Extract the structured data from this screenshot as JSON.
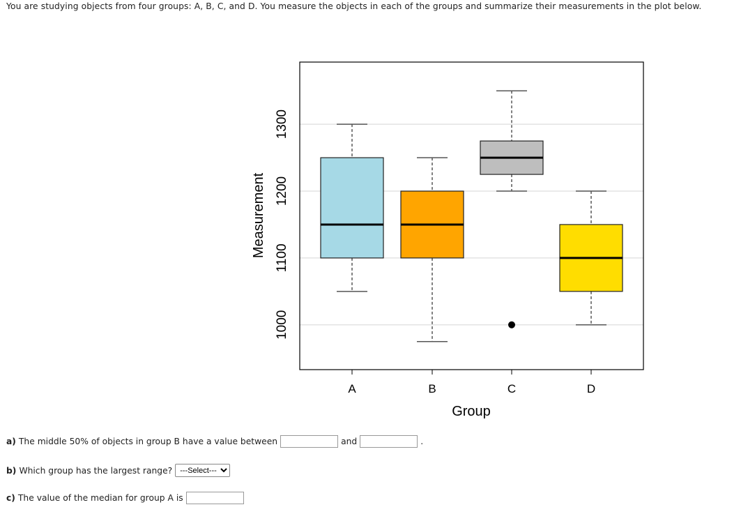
{
  "intro": "You are studying objects from four groups: A, B, C, and D. You measure the objects in each of the groups and summarize their measurements in the plot below.",
  "chart_data": {
    "type": "boxplot",
    "xlabel": "Group",
    "ylabel": "Measurement",
    "categories": [
      "A",
      "B",
      "C",
      "D"
    ],
    "yticks": [
      1000,
      1100,
      1200,
      1300
    ],
    "ylim": [
      933,
      1393
    ],
    "grid": "horizontal",
    "boxes": [
      {
        "group": "A",
        "min": 1050,
        "q1": 1100,
        "median": 1150,
        "q3": 1250,
        "max": 1300,
        "outliers": [],
        "color": "#A6D9E6"
      },
      {
        "group": "B",
        "min": 975,
        "q1": 1100,
        "median": 1150,
        "q3": 1200,
        "max": 1250,
        "outliers": [],
        "color": "#FFA500"
      },
      {
        "group": "C",
        "min": 1200,
        "q1": 1225,
        "median": 1250,
        "q3": 1275,
        "max": 1350,
        "outliers": [
          1000
        ],
        "color": "#BEBEBE"
      },
      {
        "group": "D",
        "min": 1000,
        "q1": 1050,
        "median": 1100,
        "q3": 1150,
        "max": 1200,
        "outliers": [],
        "color": "#FFDD00"
      }
    ]
  },
  "questions": {
    "a": {
      "label": "a)",
      "text": "The middle 50% of objects in group B have a value between",
      "and": "and",
      "end": ".",
      "value1": "",
      "value2": ""
    },
    "b": {
      "label": "b)",
      "text": "Which group has the largest range?",
      "select": "---Select---"
    },
    "c": {
      "label": "c)",
      "text": "The value of the median for group A is",
      "value": ""
    }
  }
}
